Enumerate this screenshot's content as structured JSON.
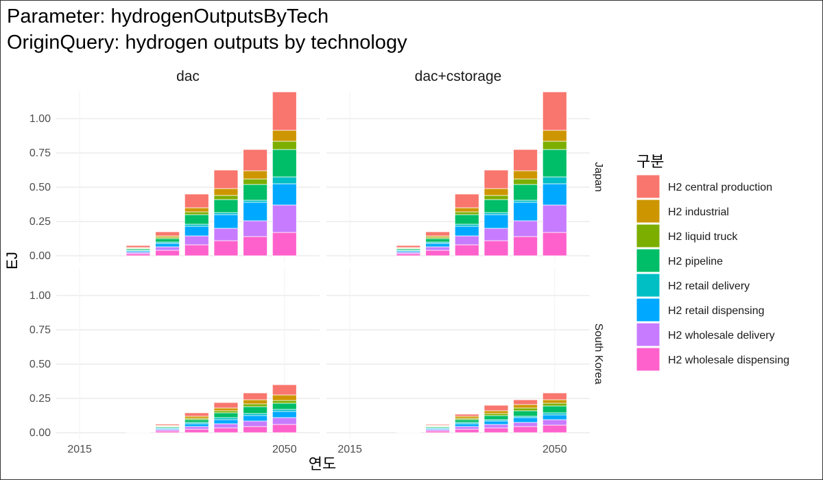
{
  "title_line1": "Parameter: hydrogenOutputsByTech",
  "title_line2": "OriginQuery: hydrogen outputs by technology",
  "chart_data": {
    "type": "bar",
    "stacked": true,
    "xlabel": "연도",
    "ylabel": "EJ",
    "legend_title": "구분",
    "legend_position": "right",
    "grid": true,
    "x_ticks": [
      2015,
      2050
    ],
    "y_ticks": [
      0.0,
      0.25,
      0.5,
      0.75,
      1.0
    ],
    "y_tick_labels": [
      "0.00",
      "0.25",
      "0.50",
      "0.75",
      "1.00"
    ],
    "ylim": [
      -0.05,
      1.2
    ],
    "xlim": [
      2011,
      2056
    ],
    "years": [
      2025,
      2030,
      2035,
      2040,
      2045,
      2050
    ],
    "facet_cols": [
      "dac",
      "dac+cstorage"
    ],
    "facet_rows": [
      "Japan",
      "South Korea"
    ],
    "series_order": [
      "H2 wholesale dispensing",
      "H2 wholesale delivery",
      "H2 retail dispensing",
      "H2 retail delivery",
      "H2 pipeline",
      "H2 liquid truck",
      "H2 industrial",
      "H2 central production"
    ],
    "legend_order": [
      "H2 central production",
      "H2 industrial",
      "H2 liquid truck",
      "H2 pipeline",
      "H2 retail delivery",
      "H2 retail dispensing",
      "H2 wholesale delivery",
      "H2 wholesale dispensing"
    ],
    "colors": {
      "H2 central production": "#F8766D",
      "H2 industrial": "#CD9600",
      "H2 liquid truck": "#7CAE00",
      "H2 pipeline": "#00BE67",
      "H2 retail delivery": "#00BFC4",
      "H2 retail dispensing": "#00A9FF",
      "H2 wholesale delivery": "#C77CFF",
      "H2 wholesale dispensing": "#FF61CC"
    },
    "panels": [
      {
        "col": "dac",
        "row": "Japan",
        "series": [
          {
            "name": "H2 wholesale dispensing",
            "values": [
              0.015,
              0.04,
              0.08,
              0.11,
              0.14,
              0.17
            ]
          },
          {
            "name": "H2 wholesale delivery",
            "values": [
              0.01,
              0.025,
              0.065,
              0.09,
              0.115,
              0.2
            ]
          },
          {
            "name": "H2 retail dispensing",
            "values": [
              0.01,
              0.025,
              0.07,
              0.1,
              0.135,
              0.155
            ]
          },
          {
            "name": "H2 retail delivery",
            "values": [
              0.005,
              0.01,
              0.015,
              0.015,
              0.015,
              0.05
            ]
          },
          {
            "name": "H2 pipeline",
            "values": [
              0.01,
              0.025,
              0.07,
              0.095,
              0.115,
              0.2
            ]
          },
          {
            "name": "H2 liquid truck",
            "values": [
              0.005,
              0.01,
              0.02,
              0.03,
              0.04,
              0.06
            ]
          },
          {
            "name": "H2 industrial",
            "values": [
              0.005,
              0.01,
              0.03,
              0.05,
              0.06,
              0.08
            ]
          },
          {
            "name": "H2 central production",
            "values": [
              0.015,
              0.03,
              0.1,
              0.135,
              0.155,
              0.28
            ]
          }
        ]
      },
      {
        "col": "dac+cstorage",
        "row": "Japan",
        "series": [
          {
            "name": "H2 wholesale dispensing",
            "values": [
              0.015,
              0.04,
              0.08,
              0.11,
              0.14,
              0.17
            ]
          },
          {
            "name": "H2 wholesale delivery",
            "values": [
              0.01,
              0.025,
              0.065,
              0.09,
              0.115,
              0.2
            ]
          },
          {
            "name": "H2 retail dispensing",
            "values": [
              0.01,
              0.025,
              0.07,
              0.1,
              0.135,
              0.155
            ]
          },
          {
            "name": "H2 retail delivery",
            "values": [
              0.005,
              0.01,
              0.015,
              0.015,
              0.015,
              0.05
            ]
          },
          {
            "name": "H2 pipeline",
            "values": [
              0.01,
              0.025,
              0.07,
              0.095,
              0.115,
              0.2
            ]
          },
          {
            "name": "H2 liquid truck",
            "values": [
              0.005,
              0.01,
              0.02,
              0.03,
              0.04,
              0.06
            ]
          },
          {
            "name": "H2 industrial",
            "values": [
              0.005,
              0.01,
              0.03,
              0.05,
              0.06,
              0.08
            ]
          },
          {
            "name": "H2 central production",
            "values": [
              0.015,
              0.03,
              0.1,
              0.135,
              0.155,
              0.28
            ]
          }
        ]
      },
      {
        "col": "dac",
        "row": "South Korea",
        "series": [
          {
            "name": "H2 wholesale dispensing",
            "values": [
              0.003,
              0.012,
              0.025,
              0.035,
              0.045,
              0.06
            ]
          },
          {
            "name": "H2 wholesale delivery",
            "values": [
              0.002,
              0.01,
              0.02,
              0.03,
              0.04,
              0.05
            ]
          },
          {
            "name": "H2 retail dispensing",
            "values": [
              0.001,
              0.008,
              0.02,
              0.03,
              0.04,
              0.045
            ]
          },
          {
            "name": "H2 retail delivery",
            "values": [
              0.001,
              0.005,
              0.01,
              0.015,
              0.015,
              0.015
            ]
          },
          {
            "name": "H2 pipeline",
            "values": [
              0.001,
              0.008,
              0.02,
              0.035,
              0.05,
              0.045
            ]
          },
          {
            "name": "H2 liquid truck",
            "values": [
              0.0,
              0.005,
              0.01,
              0.015,
              0.02,
              0.02
            ]
          },
          {
            "name": "H2 industrial",
            "values": [
              0.0,
              0.005,
              0.015,
              0.02,
              0.03,
              0.04
            ]
          },
          {
            "name": "H2 central production",
            "values": [
              0.002,
              0.009,
              0.025,
              0.04,
              0.05,
              0.075
            ]
          }
        ]
      },
      {
        "col": "dac+cstorage",
        "row": "South Korea",
        "series": [
          {
            "name": "H2 wholesale dispensing",
            "values": [
              0.003,
              0.012,
              0.025,
              0.035,
              0.045,
              0.055
            ]
          },
          {
            "name": "H2 wholesale delivery",
            "values": [
              0.002,
              0.01,
              0.02,
              0.025,
              0.03,
              0.04
            ]
          },
          {
            "name": "H2 retail dispensing",
            "values": [
              0.001,
              0.008,
              0.02,
              0.025,
              0.035,
              0.035
            ]
          },
          {
            "name": "H2 retail delivery",
            "values": [
              0.001,
              0.005,
              0.01,
              0.01,
              0.01,
              0.015
            ]
          },
          {
            "name": "H2 pipeline",
            "values": [
              0.001,
              0.008,
              0.02,
              0.03,
              0.04,
              0.05
            ]
          },
          {
            "name": "H2 liquid truck",
            "values": [
              0.0,
              0.005,
              0.01,
              0.015,
              0.02,
              0.02
            ]
          },
          {
            "name": "H2 industrial",
            "values": [
              0.0,
              0.005,
              0.015,
              0.02,
              0.025,
              0.025
            ]
          },
          {
            "name": "H2 central production",
            "values": [
              0.002,
              0.007,
              0.015,
              0.04,
              0.035,
              0.05
            ]
          }
        ]
      }
    ]
  }
}
